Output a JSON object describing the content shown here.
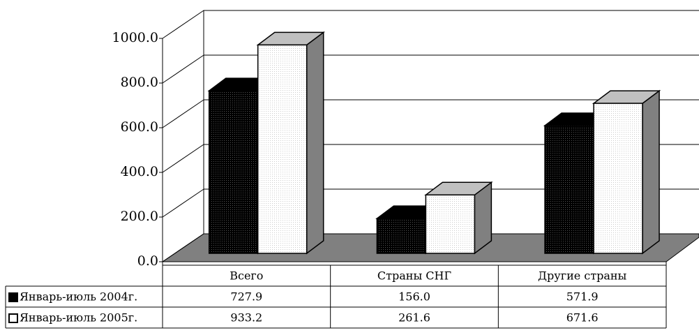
{
  "chart_data": {
    "type": "bar3d",
    "categories": [
      "Всего",
      "Страны СНГ",
      "Другие страны"
    ],
    "series": [
      {
        "name": "Январь-июль 2004г.",
        "color": "#000000",
        "values": [
          727.9,
          156.0,
          571.9
        ],
        "value_labels": [
          "727.9",
          "156.0",
          "571.9"
        ]
      },
      {
        "name": "Январь-июль 2005г.",
        "color": "#ffffff",
        "values": [
          933.2,
          261.6,
          671.6
        ],
        "value_labels": [
          "933.2",
          "261.6",
          "671.6"
        ]
      }
    ],
    "ylim": [
      0,
      1000
    ],
    "yticks": [
      {
        "value": 0,
        "label": "0.0"
      },
      {
        "value": 200,
        "label": "200.0"
      },
      {
        "value": 400,
        "label": "400.0"
      },
      {
        "value": 600,
        "label": "600.0"
      },
      {
        "value": 800,
        "label": "800.0"
      },
      {
        "value": 1000,
        "label": "1000.0"
      }
    ],
    "grid": true
  }
}
